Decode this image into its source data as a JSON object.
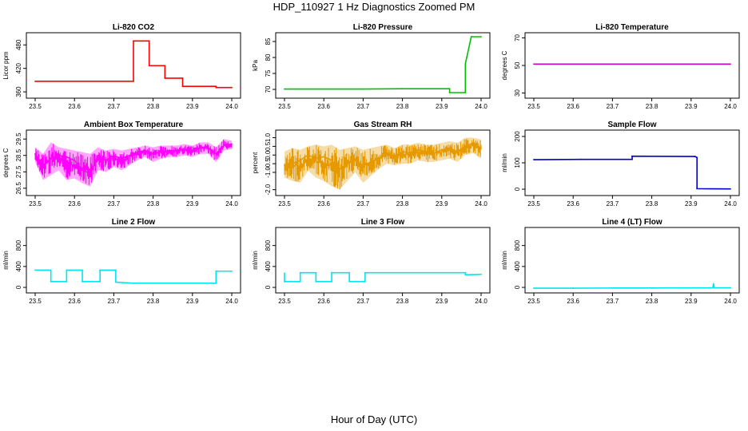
{
  "title": "HDP_110927  1 Hz Diagnostics Zoomed PM",
  "xlabel": "Hour of Day (UTC)",
  "chart_data": [
    {
      "type": "line",
      "title": "Li-820 CO2",
      "ylabel": "Licor ppm",
      "color": "#ff0000",
      "xlim": [
        23.5,
        24.0
      ],
      "ylim": [
        350,
        505
      ],
      "yticks": [
        "360",
        "420",
        "480"
      ],
      "xticks": [
        "23.5",
        "23.6",
        "23.7",
        "23.8",
        "23.9",
        "24.0"
      ],
      "x": [
        23.5,
        23.75,
        23.75,
        23.79,
        23.79,
        23.83,
        23.83,
        23.875,
        23.875,
        23.96,
        23.96,
        24.0
      ],
      "y": [
        387,
        387,
        490,
        490,
        427,
        427,
        395,
        395,
        374,
        374,
        371,
        371
      ]
    },
    {
      "type": "line",
      "title": "Li-820 Pressure",
      "ylabel": "kPa",
      "color": "#00c000",
      "xlim": [
        23.5,
        24.0
      ],
      "ylim": [
        68,
        87
      ],
      "yticks": [
        "70",
        "75",
        "80",
        "85"
      ],
      "xticks": [
        "23.5",
        "23.6",
        "23.7",
        "23.8",
        "23.9",
        "24.0"
      ],
      "x": [
        23.5,
        23.7,
        23.8,
        23.92,
        23.92,
        23.96,
        23.96,
        23.975,
        24.0
      ],
      "y": [
        70.1,
        70.1,
        70.2,
        70.2,
        69.0,
        69.0,
        78,
        86.5,
        86.5
      ]
    },
    {
      "type": "line",
      "title": "Li-820 Temperature",
      "ylabel": "degrees C",
      "color": "#cc00cc",
      "xlim": [
        23.5,
        24.0
      ],
      "ylim": [
        28,
        72
      ],
      "yticks": [
        "30",
        "50",
        "70"
      ],
      "xticks": [
        "23.5",
        "23.6",
        "23.7",
        "23.8",
        "23.9",
        "24.0"
      ],
      "x": [
        23.5,
        24.0
      ],
      "y": [
        51,
        51
      ]
    },
    {
      "type": "line",
      "title": "Ambient Box Temperature",
      "ylabel": "degrees C",
      "color": "#ff00ff",
      "xlim": [
        23.5,
        24.0
      ],
      "ylim": [
        26.2,
        29.9
      ],
      "yticks": [
        "26.5",
        "27.5",
        "28.5",
        "29.5"
      ],
      "xticks": [
        "23.5",
        "23.6",
        "23.7",
        "23.8",
        "23.9",
        "24.0"
      ],
      "x": [
        23.5,
        23.52,
        23.54,
        23.56,
        23.58,
        23.6,
        23.62,
        23.64,
        23.66,
        23.68,
        23.7,
        23.72,
        23.74,
        23.76,
        23.78,
        23.8,
        23.82,
        23.84,
        23.86,
        23.88,
        23.9,
        23.92,
        23.94,
        23.96,
        23.98,
        24.0
      ],
      "y": [
        28.6,
        27.9,
        28.3,
        28.5,
        28.4,
        28.2,
        27.6,
        27.4,
        28.5,
        28.2,
        28.5,
        28.3,
        28.5,
        28.7,
        28.8,
        28.6,
        28.7,
        28.8,
        28.8,
        28.9,
        28.7,
        29.0,
        29.0,
        28.6,
        29.1,
        29.2
      ],
      "ymin_envelope": [
        28.1,
        27.0,
        27.3,
        27.6,
        27.0,
        27.1,
        26.8,
        26.6,
        27.6,
        27.5,
        27.8,
        27.6,
        27.9,
        28.2,
        28.4,
        28.1,
        28.3,
        28.4,
        28.4,
        28.5,
        28.4,
        28.6,
        28.6,
        28.1,
        28.8,
        28.9
      ],
      "ymax_envelope": [
        29.0,
        28.6,
        29.3,
        29.0,
        28.9,
        28.8,
        28.7,
        28.6,
        29.0,
        28.8,
        28.9,
        28.8,
        28.9,
        29.0,
        29.1,
        29.0,
        29.1,
        29.1,
        29.1,
        29.2,
        29.1,
        29.3,
        29.3,
        29.0,
        29.5,
        29.4
      ]
    },
    {
      "type": "line",
      "title": "Gas Stream RH",
      "ylabel": "percent",
      "color": "#e69a00",
      "xlim": [
        23.5,
        24.0
      ],
      "ylim": [
        -2.2,
        1.3
      ],
      "yticks": [
        "-2.0",
        "-1.0",
        "-0.5",
        "0.0",
        "0.5",
        "1.0"
      ],
      "xticks": [
        "23.5",
        "23.6",
        "23.7",
        "23.8",
        "23.9",
        "24.0"
      ],
      "x": [
        23.5,
        23.52,
        23.54,
        23.56,
        23.58,
        23.6,
        23.62,
        23.64,
        23.66,
        23.68,
        23.7,
        23.72,
        23.74,
        23.76,
        23.78,
        23.8,
        23.82,
        23.84,
        23.86,
        23.88,
        23.9,
        23.92,
        23.94,
        23.96,
        23.98,
        24.0
      ],
      "y": [
        -0.6,
        -0.5,
        -0.3,
        0.0,
        -0.2,
        -0.1,
        -0.3,
        -0.8,
        -0.5,
        -0.3,
        -0.6,
        -0.4,
        -0.2,
        0.0,
        -0.1,
        0.2,
        0.1,
        0.3,
        0.2,
        0.1,
        0.3,
        0.4,
        0.2,
        0.5,
        0.7,
        0.4
      ],
      "ymin_envelope": [
        -1.3,
        -1.5,
        -1.6,
        -0.9,
        -1.3,
        -1.5,
        -1.8,
        -2.0,
        -1.5,
        -1.0,
        -1.6,
        -1.2,
        -0.8,
        -0.5,
        -0.6,
        -0.5,
        -0.5,
        -0.3,
        -0.4,
        -0.4,
        -0.3,
        -0.2,
        -0.4,
        0.0,
        0.1,
        -0.2
      ],
      "ymax_envelope": [
        0.2,
        0.4,
        0.3,
        0.5,
        0.6,
        0.5,
        0.6,
        0.3,
        0.4,
        0.5,
        0.3,
        0.4,
        0.5,
        0.6,
        0.4,
        0.6,
        0.6,
        0.7,
        0.6,
        0.6,
        0.7,
        0.8,
        0.7,
        1.0,
        1.0,
        0.9
      ]
    },
    {
      "type": "line",
      "title": "Sample Flow",
      "ylabel": "ml/min",
      "color": "#0000cc",
      "xlim": [
        23.5,
        24.0
      ],
      "ylim": [
        -15,
        215
      ],
      "yticks": [
        "0",
        "100",
        "200"
      ],
      "xticks": [
        "23.5",
        "23.6",
        "23.7",
        "23.8",
        "23.9",
        "24.0"
      ],
      "x": [
        23.5,
        23.62,
        23.75,
        23.75,
        23.91,
        23.915,
        23.915,
        24.0
      ],
      "y": [
        112,
        113,
        113,
        125,
        124,
        120,
        2,
        1
      ]
    },
    {
      "type": "line",
      "title": "Line 2 Flow",
      "ylabel": "ml/min",
      "color": "#00e5ee",
      "xlim": [
        23.5,
        24.0
      ],
      "ylim": [
        -60,
        1100
      ],
      "yticks": [
        "0",
        "400",
        "800"
      ],
      "xticks": [
        "23.5",
        "23.6",
        "23.7",
        "23.8",
        "23.9",
        "24.0"
      ],
      "x": [
        23.5,
        23.54,
        23.54,
        23.58,
        23.58,
        23.62,
        23.62,
        23.665,
        23.665,
        23.705,
        23.705,
        23.75,
        23.96,
        23.96,
        24.0
      ],
      "y": [
        330,
        330,
        110,
        110,
        330,
        330,
        110,
        110,
        330,
        330,
        100,
        80,
        80,
        310,
        310
      ]
    },
    {
      "type": "line",
      "title": "Line 3 Flow",
      "ylabel": "ml/min",
      "color": "#00e5ee",
      "xlim": [
        23.5,
        24.0
      ],
      "ylim": [
        -60,
        1100
      ],
      "yticks": [
        "0",
        "400",
        "800"
      ],
      "xticks": [
        "23.5",
        "23.6",
        "23.7",
        "23.8",
        "23.9",
        "24.0"
      ],
      "x": [
        23.5,
        23.5,
        23.54,
        23.54,
        23.58,
        23.58,
        23.62,
        23.62,
        23.665,
        23.665,
        23.705,
        23.705,
        23.96,
        23.96,
        24.0
      ],
      "y": [
        270,
        110,
        110,
        280,
        280,
        110,
        110,
        280,
        280,
        110,
        110,
        280,
        280,
        240,
        250
      ]
    },
    {
      "type": "line",
      "title": "Line 4 (LT) Flow",
      "ylabel": "ml/min",
      "color": "#00e5ee",
      "xlim": [
        23.5,
        24.0
      ],
      "ylim": [
        -60,
        1100
      ],
      "yticks": [
        "0",
        "400",
        "800"
      ],
      "xticks": [
        "23.5",
        "23.6",
        "23.7",
        "23.8",
        "23.9",
        "24.0"
      ],
      "x": [
        23.5,
        23.6,
        23.7,
        23.8,
        23.9,
        23.955,
        23.957,
        23.959,
        24.0
      ],
      "y": [
        -15,
        -15,
        -12,
        -12,
        -10,
        -10,
        70,
        -8,
        -8
      ]
    }
  ]
}
